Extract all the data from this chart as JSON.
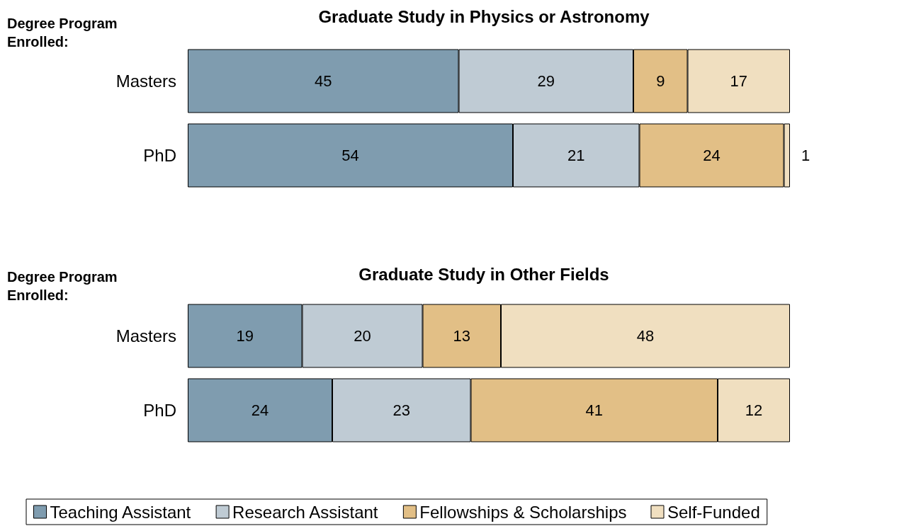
{
  "chart_data": [
    {
      "type": "bar",
      "orientation": "horizontal",
      "stacked": true,
      "title": "Graduate Study in Physics or Astronomy",
      "ylabel": "Degree Program Enrolled:",
      "categories": [
        "Masters",
        "PhD"
      ],
      "xlim": [
        0,
        100
      ],
      "tick_labels": "y",
      "data_labels": true,
      "series": [
        {
          "color": "#7f9caf",
          "values": [
            45,
            54
          ]
        },
        {
          "color": "#bfcbd4",
          "values": [
            29,
            21
          ]
        },
        {
          "color": "#e2bf86",
          "values": [
            9,
            24
          ]
        },
        {
          "color": "#f0dfc0",
          "values": [
            17,
            1
          ]
        }
      ]
    },
    {
      "type": "bar",
      "orientation": "horizontal",
      "stacked": true,
      "title": "Graduate Study in Other Fields",
      "ylabel": "Degree Program Enrolled:",
      "categories": [
        "Masters",
        "PhD"
      ],
      "xlim": [
        0,
        100
      ],
      "tick_labels": "y",
      "data_labels": true,
      "legend": "bottom",
      "series": [
        {
          "name": "Teaching Assistant",
          "color": "#7f9caf",
          "values": [
            19,
            24
          ]
        },
        {
          "name": "Research Assistant",
          "color": "#bfcbd4",
          "values": [
            20,
            23
          ]
        },
        {
          "name": "Fellowships & Scholarships",
          "color": "#e2bf86",
          "values": [
            13,
            41
          ]
        },
        {
          "name": "Self-Funded",
          "color": "#f0dfc0",
          "values": [
            48,
            12
          ]
        }
      ]
    }
  ]
}
